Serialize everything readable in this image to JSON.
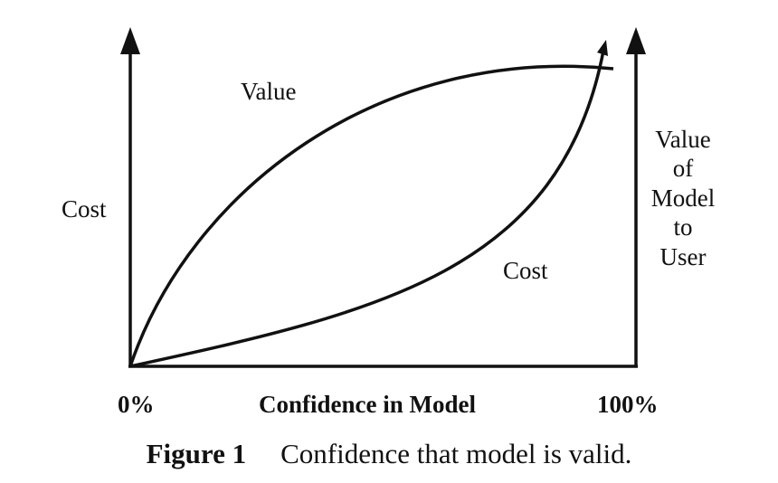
{
  "diagram": {
    "left_axis_label": "Cost",
    "right_axis_label_lines": [
      "Value",
      "of",
      "Model",
      "to",
      "User"
    ],
    "x_axis_label": "Confidence in Model",
    "x_axis_start_label": "0%",
    "x_axis_end_label": "100%",
    "curves": [
      {
        "name": "value-curve",
        "label": "Value"
      },
      {
        "name": "cost-curve",
        "label": "Cost"
      }
    ],
    "line_color": "#111111"
  },
  "caption": {
    "number": "Figure 1",
    "text": "Confidence that model is valid."
  }
}
